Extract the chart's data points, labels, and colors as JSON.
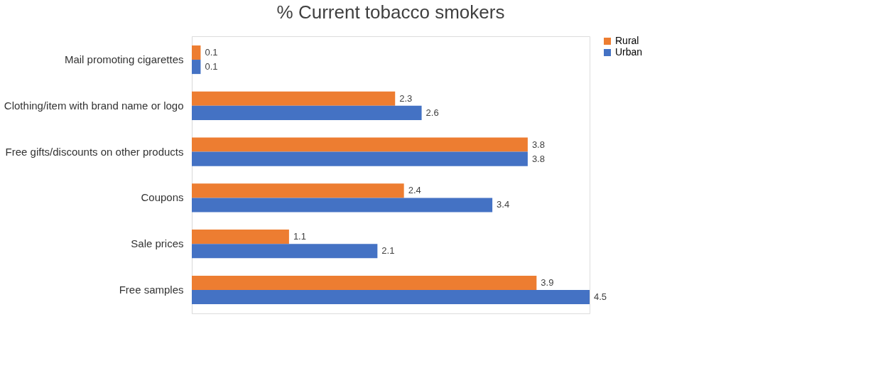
{
  "chart_data": {
    "type": "bar",
    "orientation": "horizontal",
    "title": "% Current tobacco smokers",
    "categories": [
      "Mail promoting cigarettes",
      "Clothing/item with brand name or logo",
      "Free gifts/discounts on other products",
      "Coupons",
      "Sale prices",
      "Free samples"
    ],
    "series": [
      {
        "name": "Rural",
        "color": "#ed7d31",
        "values": [
          0.1,
          2.3,
          3.8,
          2.4,
          1.1,
          3.9
        ]
      },
      {
        "name": "Urban",
        "color": "#4472c4",
        "values": [
          0.1,
          2.6,
          3.8,
          3.4,
          2.1,
          4.5
        ]
      }
    ],
    "data_labels": true,
    "legend": "top right",
    "grid": false
  }
}
